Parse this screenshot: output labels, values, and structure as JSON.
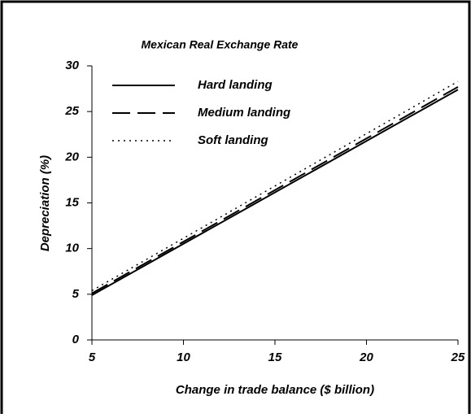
{
  "chart_data": {
    "type": "line",
    "title": "Mexican Real Exchange Rate",
    "x_label": "Change in trade balance ($ billion)",
    "y_label": "Depreciation (%)",
    "x": [
      5,
      25
    ],
    "series": [
      {
        "name": "Hard landing",
        "color": "#000000",
        "style": "solid",
        "values": [
          4.9,
          27.4
        ]
      },
      {
        "name": "Medium landing",
        "color": "#000000",
        "style": "dashed",
        "values": [
          5.1,
          27.7
        ]
      },
      {
        "name": "Soft landing",
        "color": "#000000",
        "style": "dotted",
        "values": [
          5.4,
          28.3
        ]
      }
    ],
    "xlim": [
      5,
      25
    ],
    "xticks": [
      5,
      10,
      15,
      20,
      25
    ],
    "ylim": [
      0,
      30
    ],
    "yticks": [
      0,
      5,
      10,
      15,
      20,
      25,
      30
    ],
    "grid": false,
    "legend": "upper left"
  }
}
